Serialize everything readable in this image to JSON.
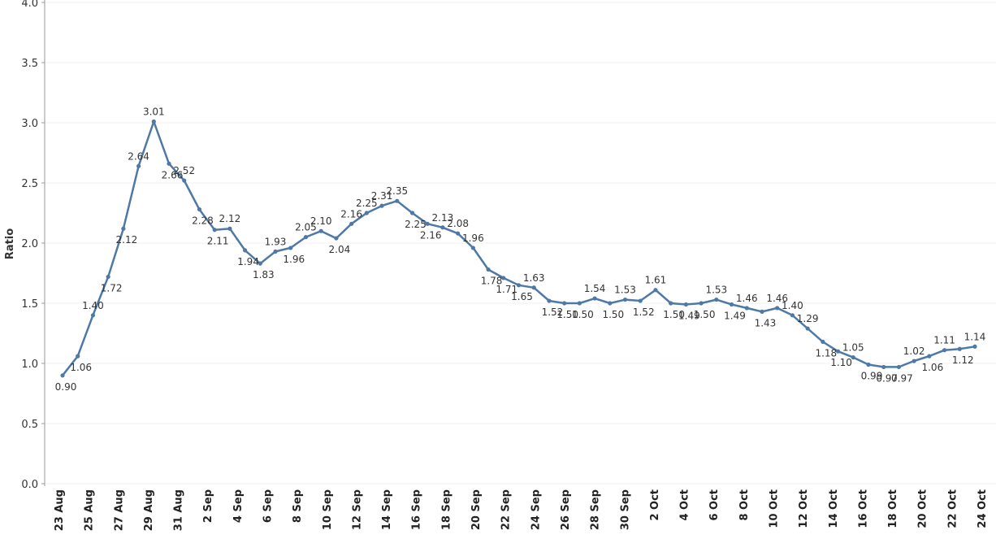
{
  "chart_data": {
    "type": "line",
    "title": "",
    "xlabel": "",
    "ylabel": "Ratio",
    "ylim": [
      0,
      4
    ],
    "yticks": [
      "0.0",
      "0.5",
      "1.0",
      "1.5",
      "2.0",
      "2.5",
      "3.0",
      "3.5",
      "4.0"
    ],
    "grid": true,
    "line_color": "#4e79a7",
    "xtick_labels": [
      "23 Aug",
      "25 Aug",
      "27 Aug",
      "29 Aug",
      "31 Aug",
      "2 Sep",
      "4 Sep",
      "6 Sep",
      "8 Sep",
      "10 Sep",
      "12 Sep",
      "14 Sep",
      "16 Sep",
      "18 Sep",
      "20 Sep",
      "22 Sep",
      "24 Sep",
      "26 Sep",
      "28 Sep",
      "30 Sep",
      "2 Oct",
      "4 Oct",
      "6 Oct",
      "8 Oct",
      "10 Oct",
      "12 Oct",
      "14 Oct",
      "16 Oct",
      "18 Oct",
      "20 Oct",
      "22 Oct",
      "24 Oct"
    ],
    "values": [
      0.9,
      1.06,
      1.4,
      1.72,
      2.12,
      2.64,
      3.01,
      2.66,
      2.52,
      2.28,
      2.11,
      2.12,
      1.94,
      1.83,
      1.93,
      1.96,
      2.05,
      2.1,
      2.04,
      2.16,
      2.25,
      2.31,
      2.35,
      2.25,
      2.16,
      2.13,
      2.08,
      1.96,
      1.78,
      1.71,
      1.65,
      1.63,
      1.52,
      1.5,
      1.5,
      1.54,
      1.5,
      1.53,
      1.52,
      1.61,
      1.5,
      1.49,
      1.5,
      1.53,
      1.49,
      1.46,
      1.43,
      1.46,
      1.4,
      1.29,
      1.18,
      1.1,
      1.05,
      0.99,
      0.97,
      0.97,
      1.02,
      1.06,
      1.11,
      1.12,
      1.14
    ]
  }
}
